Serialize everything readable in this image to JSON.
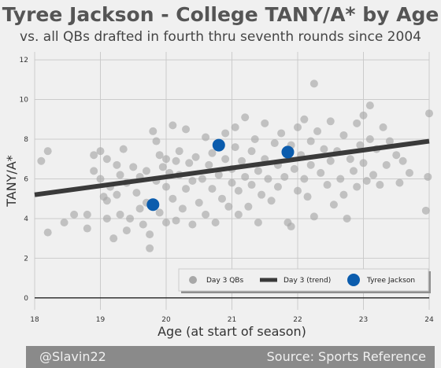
{
  "footer": {
    "handle": "@Slavin22",
    "source": "Source: Sports Reference"
  },
  "colors": {
    "background": "#f0f0f0",
    "grid": "#cbcbcb",
    "dots": "#a8a8a8",
    "trend": "#3a3a3a",
    "highlight": "#0b5cad"
  },
  "chart_data": {
    "type": "scatter",
    "title": "Tyree Jackson - College TANY/A* by Age",
    "subtitle": "vs. all QBs drafted in fourth thru seventh rounds since 2004",
    "xlabel": "Age (at start of season)",
    "ylabel": "TANY/A*",
    "xlim": [
      18,
      24
    ],
    "ylim": [
      -0.6,
      12.4
    ],
    "xticks": [
      18,
      19,
      20,
      21,
      22,
      23,
      24
    ],
    "yticks": [
      0,
      2,
      4,
      6,
      8,
      10,
      12
    ],
    "grid": true,
    "legend_position": "lower-right",
    "legend": [
      "Day 3 QBs",
      "Day 3 (trend)",
      "Tyree Jackson"
    ],
    "trend": {
      "name": "Day 3 (trend)",
      "x": [
        18,
        24
      ],
      "y": [
        5.2,
        7.9
      ]
    },
    "highlight": {
      "name": "Tyree Jackson",
      "points": [
        [
          19.8,
          4.7
        ],
        [
          20.8,
          7.7
        ],
        [
          21.85,
          7.35
        ]
      ]
    },
    "series": [
      {
        "name": "Day 3 QBs",
        "points": [
          [
            18.1,
            6.9
          ],
          [
            18.2,
            7.4
          ],
          [
            18.2,
            3.3
          ],
          [
            18.45,
            3.8
          ],
          [
            18.6,
            4.2
          ],
          [
            18.8,
            4.2
          ],
          [
            18.8,
            3.5
          ],
          [
            18.9,
            7.2
          ],
          [
            18.9,
            6.4
          ],
          [
            19.0,
            7.4
          ],
          [
            19.0,
            6.0
          ],
          [
            19.05,
            5.1
          ],
          [
            19.1,
            4.9
          ],
          [
            19.1,
            4.0
          ],
          [
            19.1,
            7.0
          ],
          [
            19.15,
            5.6
          ],
          [
            19.2,
            3.0
          ],
          [
            19.25,
            5.2
          ],
          [
            19.25,
            6.7
          ],
          [
            19.3,
            6.2
          ],
          [
            19.3,
            4.2
          ],
          [
            19.35,
            7.5
          ],
          [
            19.4,
            5.8
          ],
          [
            19.4,
            3.4
          ],
          [
            19.45,
            4.0
          ],
          [
            19.5,
            6.6
          ],
          [
            19.55,
            5.3
          ],
          [
            19.6,
            6.1
          ],
          [
            19.6,
            4.5
          ],
          [
            19.65,
            3.7
          ],
          [
            19.7,
            6.4
          ],
          [
            19.7,
            4.8
          ],
          [
            19.75,
            3.2
          ],
          [
            19.75,
            2.5
          ],
          [
            19.8,
            8.4
          ],
          [
            19.85,
            5.9
          ],
          [
            19.85,
            7.9
          ],
          [
            19.9,
            7.2
          ],
          [
            19.9,
            4.3
          ],
          [
            19.95,
            6.6
          ],
          [
            20.0,
            5.6
          ],
          [
            20.0,
            3.8
          ],
          [
            20.0,
            7.0
          ],
          [
            20.05,
            6.3
          ],
          [
            20.1,
            8.7
          ],
          [
            20.1,
            5.0
          ],
          [
            20.15,
            6.9
          ],
          [
            20.15,
            3.9
          ],
          [
            20.2,
            7.4
          ],
          [
            20.2,
            6.2
          ],
          [
            20.25,
            4.5
          ],
          [
            20.3,
            5.5
          ],
          [
            20.3,
            8.5
          ],
          [
            20.35,
            6.8
          ],
          [
            20.4,
            3.7
          ],
          [
            20.4,
            5.9
          ],
          [
            20.45,
            7.1
          ],
          [
            20.5,
            4.8
          ],
          [
            20.55,
            6.0
          ],
          [
            20.6,
            8.1
          ],
          [
            20.6,
            4.2
          ],
          [
            20.65,
            6.7
          ],
          [
            20.7,
            5.5
          ],
          [
            20.7,
            7.3
          ],
          [
            20.75,
            3.8
          ],
          [
            20.8,
            6.2
          ],
          [
            20.85,
            5.0
          ],
          [
            20.9,
            7.0
          ],
          [
            20.9,
            8.3
          ],
          [
            20.95,
            4.6
          ],
          [
            21.0,
            6.5
          ],
          [
            21.0,
            5.8
          ],
          [
            21.05,
            8.6
          ],
          [
            21.05,
            7.6
          ],
          [
            21.1,
            5.4
          ],
          [
            21.1,
            4.2
          ],
          [
            21.15,
            6.9
          ],
          [
            21.2,
            9.1
          ],
          [
            21.2,
            6.1
          ],
          [
            21.25,
            4.6
          ],
          [
            21.3,
            7.4
          ],
          [
            21.3,
            5.7
          ],
          [
            21.35,
            8.0
          ],
          [
            21.4,
            6.4
          ],
          [
            21.4,
            3.8
          ],
          [
            21.45,
            5.2
          ],
          [
            21.5,
            7.0
          ],
          [
            21.5,
            8.8
          ],
          [
            21.55,
            6.0
          ],
          [
            21.6,
            4.9
          ],
          [
            21.65,
            7.8
          ],
          [
            21.7,
            5.6
          ],
          [
            21.7,
            6.7
          ],
          [
            21.75,
            8.3
          ],
          [
            21.8,
            6.1
          ],
          [
            21.85,
            3.8
          ],
          [
            21.9,
            3.6
          ],
          [
            21.9,
            7.7
          ],
          [
            21.95,
            6.5
          ],
          [
            22.0,
            8.6
          ],
          [
            22.0,
            5.4
          ],
          [
            22.05,
            7.2
          ],
          [
            22.1,
            9.0
          ],
          [
            22.1,
            6.0
          ],
          [
            22.15,
            5.1
          ],
          [
            22.2,
            7.9
          ],
          [
            22.2,
            6.7
          ],
          [
            22.25,
            10.8
          ],
          [
            22.25,
            4.1
          ],
          [
            22.3,
            8.4
          ],
          [
            22.35,
            6.3
          ],
          [
            22.4,
            7.5
          ],
          [
            22.45,
            5.7
          ],
          [
            22.5,
            8.9
          ],
          [
            22.5,
            6.9
          ],
          [
            22.55,
            4.7
          ],
          [
            22.6,
            7.4
          ],
          [
            22.65,
            6.0
          ],
          [
            22.7,
            5.2
          ],
          [
            22.7,
            8.2
          ],
          [
            22.75,
            4.0
          ],
          [
            22.8,
            7.0
          ],
          [
            22.85,
            6.4
          ],
          [
            22.9,
            8.8
          ],
          [
            22.9,
            5.6
          ],
          [
            22.95,
            7.7
          ],
          [
            23.0,
            6.8
          ],
          [
            23.0,
            9.2
          ],
          [
            23.05,
            5.9
          ],
          [
            23.1,
            8.0
          ],
          [
            23.1,
            9.7
          ],
          [
            23.15,
            6.2
          ],
          [
            23.2,
            7.5
          ],
          [
            23.25,
            5.7
          ],
          [
            23.3,
            8.6
          ],
          [
            23.35,
            6.7
          ],
          [
            23.4,
            7.9
          ],
          [
            23.5,
            7.2
          ],
          [
            23.55,
            5.8
          ],
          [
            23.6,
            6.9
          ],
          [
            23.7,
            6.3
          ],
          [
            23.95,
            4.4
          ],
          [
            23.98,
            6.1
          ],
          [
            24.0,
            9.3
          ]
        ]
      }
    ]
  }
}
